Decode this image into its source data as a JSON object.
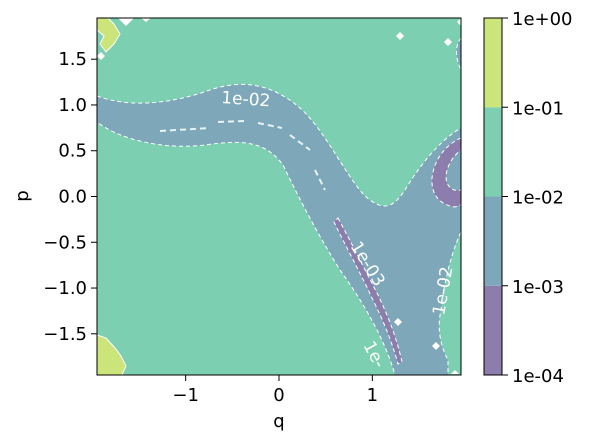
{
  "chart_data": {
    "type": "contourf",
    "xlabel": "q",
    "ylabel": "p",
    "xlim": [
      -1.95,
      1.95
    ],
    "ylim": [
      -1.95,
      1.95
    ],
    "x_ticks": [
      -1,
      0,
      1
    ],
    "x_tick_labels": [
      "−1",
      "0",
      "1"
    ],
    "y_ticks": [
      1.5,
      1.0,
      0.5,
      0.0,
      -0.5,
      -1.0,
      -1.5
    ],
    "y_tick_labels": [
      "1.5",
      "1.0",
      "0.5",
      "0.0",
      "−0.5",
      "−1.0",
      "−1.5"
    ],
    "scale": "log",
    "levels": [
      0.0001,
      0.001,
      0.01,
      0.1,
      1.0
    ],
    "level_colors": [
      "#8d7dad",
      "#7ea8b9",
      "#7dcfb1",
      "#cce57a"
    ],
    "colorbar": {
      "tick_labels": [
        "1e+00",
        "1e-01",
        "1e-02",
        "1e-03",
        "1e-04"
      ]
    },
    "contour_lines": [
      {
        "level": "1e-02",
        "style": "dashed",
        "color": "#ffffff"
      },
      {
        "level": "1e-03",
        "style": "dashed",
        "color": "#ffffff"
      }
    ],
    "contour_labels": [
      "1e-02",
      "1e-03",
      "1e-02",
      "1e-"
    ]
  }
}
